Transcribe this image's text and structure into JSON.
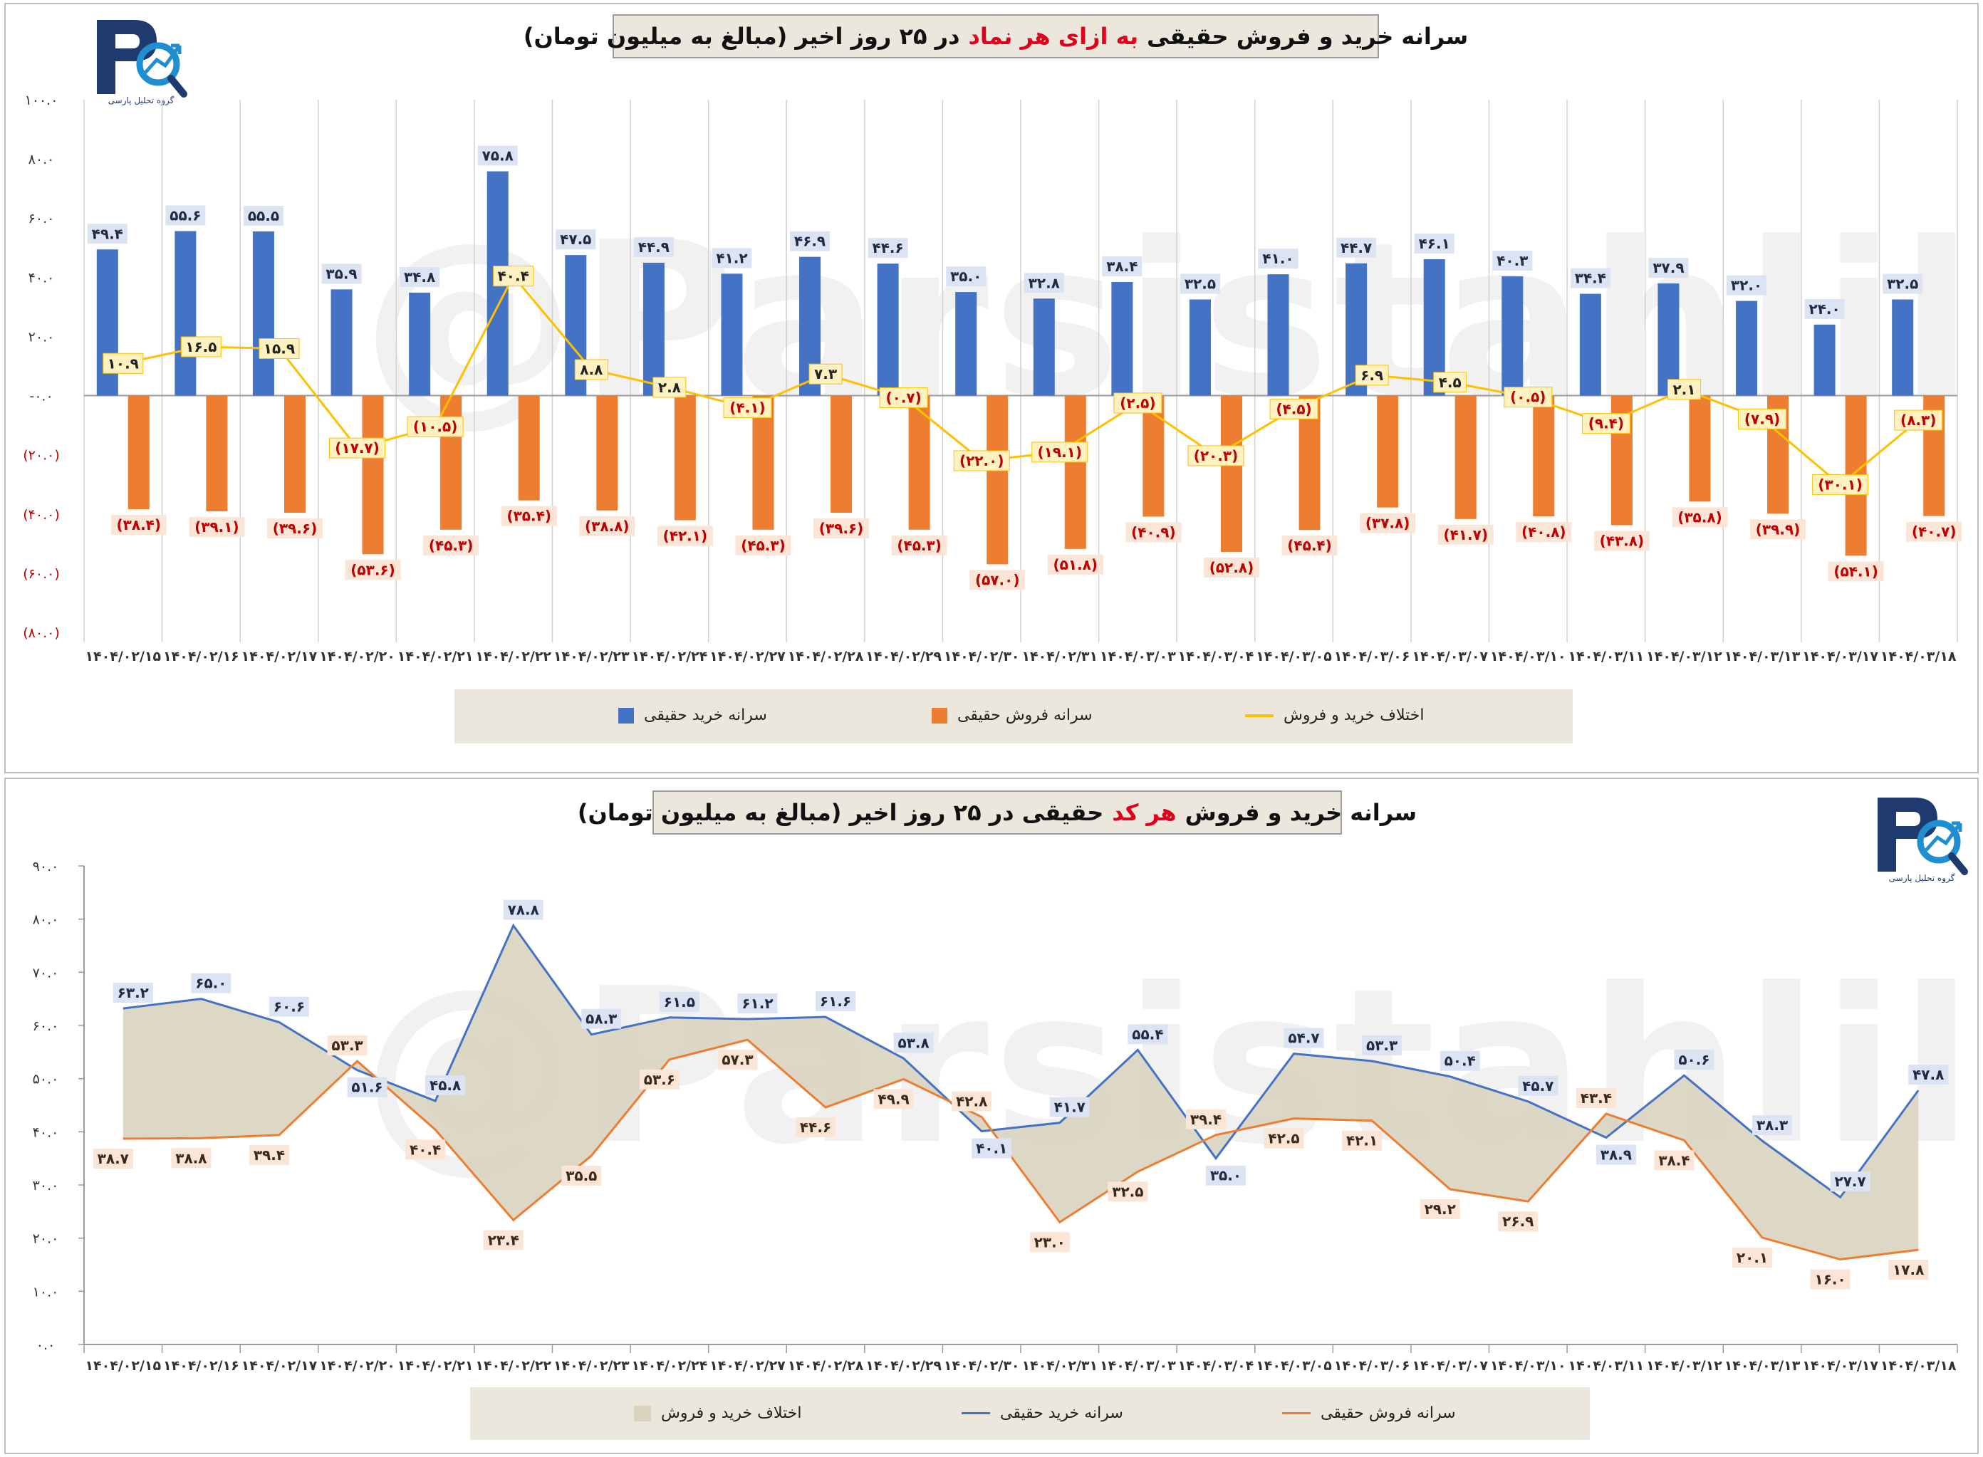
{
  "colors": {
    "buy": "#4472c4",
    "sell": "#ed7d31",
    "diff": "#ffc000",
    "area": "#d9d3c0",
    "neg_text": "#c00000",
    "title_highlight": "#e0001b"
  },
  "watermark": "@Parsistahlil",
  "logo": {
    "mark": "PA",
    "caption": "گروه تحلیل پارسی"
  },
  "top": {
    "title_pre": "سرانه خرید و فروش حقیقی",
    "title_hl": "به ازای هر نماد",
    "title_post": "در ۲۵ روز اخیر (مبالغ به میلیون تومان)",
    "legend": {
      "buy": "سرانه خرید حقیقی",
      "sell": "سرانه فروش حقیقی",
      "diff": "اختلاف خرید و فروش"
    }
  },
  "bottom": {
    "title_pre": "سرانه خرید و فروش",
    "title_hl": "هر کد",
    "title_post": "حقیقی در ۲۵ روز اخیر (مبالغ به میلیون تومان)",
    "legend": {
      "area": "اختلاف خرید و فروش",
      "buy": "سرانه خرید حقیقی",
      "sell": "سرانه فروش حقیقی"
    }
  },
  "chart_data": [
    {
      "type": "bar",
      "categories": [
        "۱۴۰۴/۰۲/۱۵",
        "۱۴۰۴/۰۲/۱۶",
        "۱۴۰۴/۰۲/۱۷",
        "۱۴۰۴/۰۲/۲۰",
        "۱۴۰۴/۰۲/۲۱",
        "۱۴۰۴/۰۲/۲۲",
        "۱۴۰۴/۰۲/۲۳",
        "۱۴۰۴/۰۲/۲۴",
        "۱۴۰۴/۰۲/۲۷",
        "۱۴۰۴/۰۲/۲۸",
        "۱۴۰۴/۰۲/۲۹",
        "۱۴۰۴/۰۲/۳۰",
        "۱۴۰۴/۰۲/۳۱",
        "۱۴۰۴/۰۳/۰۳",
        "۱۴۰۴/۰۳/۰۴",
        "۱۴۰۴/۰۳/۰۵",
        "۱۴۰۴/۰۳/۰۶",
        "۱۴۰۴/۰۳/۰۷",
        "۱۴۰۴/۰۳/۱۰",
        "۱۴۰۴/۰۳/۱۱",
        "۱۴۰۴/۰۳/۱۲",
        "۱۴۰۴/۰۳/۱۳",
        "۱۴۰۴/۰۳/۱۷",
        "۱۴۰۴/۰۳/۱۸"
      ],
      "series": [
        {
          "name": "سرانه خرید حقیقی",
          "kind": "bar",
          "values": [
            49.4,
            55.6,
            55.5,
            35.9,
            34.8,
            75.8,
            47.5,
            44.9,
            41.2,
            46.9,
            44.6,
            35.0,
            32.8,
            38.4,
            32.5,
            41.0,
            44.7,
            46.1,
            40.3,
            34.4,
            37.9,
            32.0,
            24.0,
            32.5
          ],
          "labels": [
            "۴۹.۴",
            "۵۵.۶",
            "۵۵.۵",
            "۳۵.۹",
            "۳۴.۸",
            "۷۵.۸",
            "۴۷.۵",
            "۴۴.۹",
            "۴۱.۲",
            "۴۶.۹",
            "۴۴.۶",
            "۳۵.۰",
            "۳۲.۸",
            "۳۸.۴",
            "۳۲.۵",
            "۴۱.۰",
            "۴۴.۷",
            "۴۶.۱",
            "۴۰.۳",
            "۳۴.۴",
            "۳۷.۹",
            "۳۲.۰",
            "۲۴.۰",
            "۳۲.۵"
          ]
        },
        {
          "name": "سرانه فروش حقیقی",
          "kind": "bar",
          "values": [
            -38.4,
            -39.1,
            -39.6,
            -53.6,
            -45.3,
            -35.4,
            -38.8,
            -42.1,
            -45.3,
            -39.6,
            -45.3,
            -57.0,
            -51.8,
            -40.9,
            -52.8,
            -45.4,
            -37.8,
            -41.7,
            -40.8,
            -43.8,
            -35.8,
            -39.9,
            -54.1,
            -40.7
          ],
          "labels": [
            "(۳۸.۴)",
            "(۳۹.۱)",
            "(۳۹.۶)",
            "(۵۳.۶)",
            "(۴۵.۳)",
            "(۳۵.۴)",
            "(۳۸.۸)",
            "(۴۲.۱)",
            "(۴۵.۳)",
            "(۳۹.۶)",
            "(۴۵.۳)",
            "(۵۷.۰)",
            "(۵۱.۸)",
            "(۴۰.۹)",
            "(۵۲.۸)",
            "(۴۵.۴)",
            "(۳۷.۸)",
            "(۴۱.۷)",
            "(۴۰.۸)",
            "(۴۳.۸)",
            "(۳۵.۸)",
            "(۳۹.۹)",
            "(۵۴.۱)",
            "(۴۰.۷)"
          ]
        },
        {
          "name": "اختلاف خرید و فروش",
          "kind": "line",
          "values": [
            10.9,
            16.5,
            15.9,
            -17.7,
            -10.5,
            40.4,
            8.8,
            2.8,
            -4.1,
            7.3,
            -0.7,
            -22.0,
            -19.1,
            -2.5,
            -20.3,
            -4.5,
            6.9,
            4.5,
            -0.5,
            -9.4,
            2.1,
            -7.9,
            -30.1,
            -8.3
          ],
          "labels": [
            "۱۰.۹",
            "۱۶.۵",
            "۱۵.۹",
            "(۱۷.۷)",
            "(۱۰.۵)",
            "۴۰.۴",
            "۸.۸",
            "۲.۸",
            "(۴.۱)",
            "۷.۳",
            "(۰.۷)",
            "(۲۲.۰)",
            "(۱۹.۱)",
            "(۲.۵)",
            "(۲۰.۳)",
            "(۴.۵)",
            "۶.۹",
            "۴.۵",
            "(۰.۵)",
            "(۹.۴)",
            "۲.۱",
            "(۷.۹)",
            "(۳۰.۱)",
            "(۸.۳)"
          ]
        }
      ],
      "ylim": [
        -80,
        100
      ],
      "yticks": [
        100,
        80,
        60,
        40,
        20,
        0,
        -20,
        -40,
        -60,
        -80
      ],
      "ytick_labels": [
        "۱۰۰.۰",
        "۸۰.۰",
        "۶۰.۰",
        "۴۰.۰",
        "۲۰.۰",
        "-۰.۰",
        "(۲۰.۰)",
        "(۴۰.۰)",
        "(۶۰.۰)",
        "(۸۰.۰)"
      ],
      "grid": "vertical",
      "legend": "bottom"
    },
    {
      "type": "area",
      "categories": [
        "۱۴۰۴/۰۲/۱۵",
        "۱۴۰۴/۰۲/۱۶",
        "۱۴۰۴/۰۲/۱۷",
        "۱۴۰۴/۰۲/۲۰",
        "۱۴۰۴/۰۲/۲۱",
        "۱۴۰۴/۰۲/۲۲",
        "۱۴۰۴/۰۲/۲۳",
        "۱۴۰۴/۰۲/۲۴",
        "۱۴۰۴/۰۲/۲۷",
        "۱۴۰۴/۰۲/۲۸",
        "۱۴۰۴/۰۲/۲۹",
        "۱۴۰۴/۰۲/۳۰",
        "۱۴۰۴/۰۲/۳۱",
        "۱۴۰۴/۰۳/۰۳",
        "۱۴۰۴/۰۳/۰۴",
        "۱۴۰۴/۰۳/۰۵",
        "۱۴۰۴/۰۳/۰۶",
        "۱۴۰۴/۰۳/۰۷",
        "۱۴۰۴/۰۳/۱۰",
        "۱۴۰۴/۰۳/۱۱",
        "۱۴۰۴/۰۳/۱۲",
        "۱۴۰۴/۰۳/۱۳",
        "۱۴۰۴/۰۳/۱۷",
        "۱۴۰۴/۰۳/۱۸"
      ],
      "series": [
        {
          "name": "سرانه خرید حقیقی",
          "kind": "line",
          "values": [
            63.2,
            65.0,
            60.6,
            51.6,
            45.8,
            78.8,
            58.3,
            61.5,
            61.2,
            61.6,
            53.8,
            40.1,
            41.7,
            55.4,
            35.0,
            54.7,
            53.3,
            50.4,
            45.7,
            38.9,
            50.6,
            38.3,
            27.7,
            47.8
          ],
          "labels": [
            "۶۳.۲",
            "۶۵.۰",
            "۶۰.۶",
            "۵۱.۶",
            "۴۵.۸",
            "۷۸.۸",
            "۵۸.۳",
            "۶۱.۵",
            "۶۱.۲",
            "۶۱.۶",
            "۵۳.۸",
            "۴۰.۱",
            "۴۱.۷",
            "۵۵.۴",
            "۳۵.۰",
            "۵۴.۷",
            "۵۳.۳",
            "۵۰.۴",
            "۴۵.۷",
            "۳۸.۹",
            "۵۰.۶",
            "۳۸.۳",
            "۲۷.۷",
            "۴۷.۸"
          ]
        },
        {
          "name": "سرانه فروش حقیقی",
          "kind": "line",
          "values": [
            38.7,
            38.8,
            39.4,
            53.3,
            40.4,
            23.4,
            35.5,
            53.6,
            57.3,
            44.6,
            49.9,
            42.8,
            23.0,
            32.5,
            39.4,
            42.5,
            42.1,
            29.2,
            26.9,
            43.4,
            38.4,
            20.1,
            16.0,
            17.8
          ],
          "labels": [
            "۳۸.۷",
            "۳۸.۸",
            "۳۹.۴",
            "۵۳.۳",
            "۴۰.۴",
            "۲۳.۴",
            "۳۵.۵",
            "۵۳.۶",
            "۵۷.۳",
            "۴۴.۶",
            "۴۹.۹",
            "۴۲.۸",
            "۲۳.۰",
            "۳۲.۵",
            "۳۹.۴",
            "۴۲.۵",
            "۴۲.۱",
            "۲۹.۲",
            "۲۶.۹",
            "۴۳.۴",
            "۳۸.۴",
            "۲۰.۱",
            "۱۶.۰",
            "۱۷.۸"
          ]
        }
      ],
      "ylim": [
        0,
        90
      ],
      "yticks": [
        90,
        80,
        70,
        60,
        50,
        40,
        30,
        20,
        10,
        0
      ],
      "ytick_labels": [
        "۹۰.۰",
        "۸۰.۰",
        "۷۰.۰",
        "۶۰.۰",
        "۵۰.۰",
        "۴۰.۰",
        "۳۰.۰",
        "۲۰.۰",
        "۱۰.۰",
        "۰.۰"
      ],
      "grid": "none",
      "legend": "bottom"
    }
  ]
}
